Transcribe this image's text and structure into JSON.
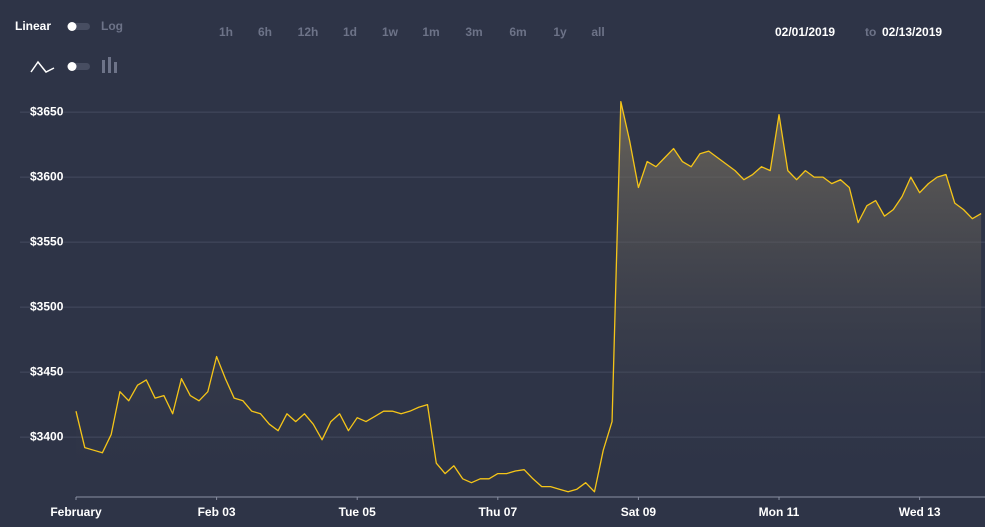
{
  "controls": {
    "scale_linear": "Linear",
    "scale_log": "Log",
    "ranges": [
      "1h",
      "6h",
      "12h",
      "1d",
      "1w",
      "1m",
      "3m",
      "6m",
      "1y",
      "all"
    ],
    "date_from": "02/01/2019",
    "date_sep": "to",
    "date_to": "02/13/2019"
  },
  "chart_data": {
    "type": "line",
    "x": [
      0,
      0.125,
      0.25,
      0.375,
      0.5,
      0.625,
      0.75,
      0.875,
      1,
      1.125,
      1.25,
      1.375,
      1.5,
      1.625,
      1.75,
      1.875,
      2,
      2.125,
      2.25,
      2.375,
      2.5,
      2.625,
      2.75,
      2.875,
      3,
      3.125,
      3.25,
      3.375,
      3.5,
      3.625,
      3.75,
      3.875,
      4,
      4.125,
      4.25,
      4.375,
      4.5,
      4.625,
      4.75,
      4.875,
      5,
      5.125,
      5.25,
      5.375,
      5.5,
      5.625,
      5.75,
      5.875,
      6,
      6.125,
      6.25,
      6.375,
      6.5,
      6.625,
      6.75,
      6.875,
      7,
      7.125,
      7.25,
      7.375,
      7.5,
      7.625,
      7.75,
      7.875,
      8,
      8.125,
      8.25,
      8.375,
      8.5,
      8.625,
      8.75,
      8.875,
      9,
      9.125,
      9.25,
      9.375,
      9.5,
      9.625,
      9.75,
      9.875,
      10,
      10.125,
      10.25,
      10.375,
      10.5,
      10.625,
      10.75,
      10.875,
      11,
      11.125,
      11.25,
      11.375,
      11.5,
      11.625,
      11.75,
      11.875,
      12,
      12.125,
      12.25,
      12.375,
      12.5,
      12.625,
      12.75,
      12.875
    ],
    "series": [
      {
        "color": "#f5c518",
        "values": [
          3420,
          3392,
          3390,
          3388,
          3402,
          3435,
          3428,
          3440,
          3444,
          3430,
          3432,
          3418,
          3445,
          3432,
          3428,
          3435,
          3462,
          3445,
          3430,
          3428,
          3420,
          3418,
          3410,
          3405,
          3418,
          3412,
          3418,
          3410,
          3398,
          3412,
          3418,
          3405,
          3415,
          3412,
          3416,
          3420,
          3420,
          3418,
          3420,
          3423,
          3425,
          3380,
          3372,
          3378,
          3368,
          3365,
          3368,
          3368,
          3372,
          3372,
          3374,
          3375,
          3368,
          3362,
          3362,
          3360,
          3358,
          3360,
          3365,
          3358,
          3390,
          3412,
          3658,
          3628,
          3592,
          3612,
          3608,
          3615,
          3622,
          3612,
          3608,
          3618,
          3620,
          3615,
          3610,
          3605,
          3598,
          3602,
          3608,
          3605,
          3648,
          3605,
          3598,
          3605,
          3600,
          3600,
          3595,
          3598,
          3592,
          3565,
          3578,
          3582,
          3570,
          3575,
          3585,
          3600,
          3588,
          3595,
          3600,
          3602,
          3580,
          3575,
          3568,
          3572
        ]
      }
    ],
    "xlim": [
      0,
      12.93
    ],
    "xticks": [
      {
        "value": 0,
        "label": "February"
      },
      {
        "value": 2,
        "label": "Feb 03"
      },
      {
        "value": 4,
        "label": "Tue 05"
      },
      {
        "value": 6,
        "label": "Thu 07"
      },
      {
        "value": 8,
        "label": "Sat 09"
      },
      {
        "value": 10,
        "label": "Mon 11"
      },
      {
        "value": 12,
        "label": "Wed 13"
      }
    ],
    "ylim": [
      3354,
      3667
    ],
    "yticks": [
      {
        "value": 3400,
        "label": "$3400"
      },
      {
        "value": 3450,
        "label": "$3450"
      },
      {
        "value": 3500,
        "label": "$3500"
      },
      {
        "value": 3550,
        "label": "$3550"
      },
      {
        "value": 3600,
        "label": "$3600"
      },
      {
        "value": 3650,
        "label": "$3650"
      }
    ],
    "grid": true,
    "area": true
  }
}
